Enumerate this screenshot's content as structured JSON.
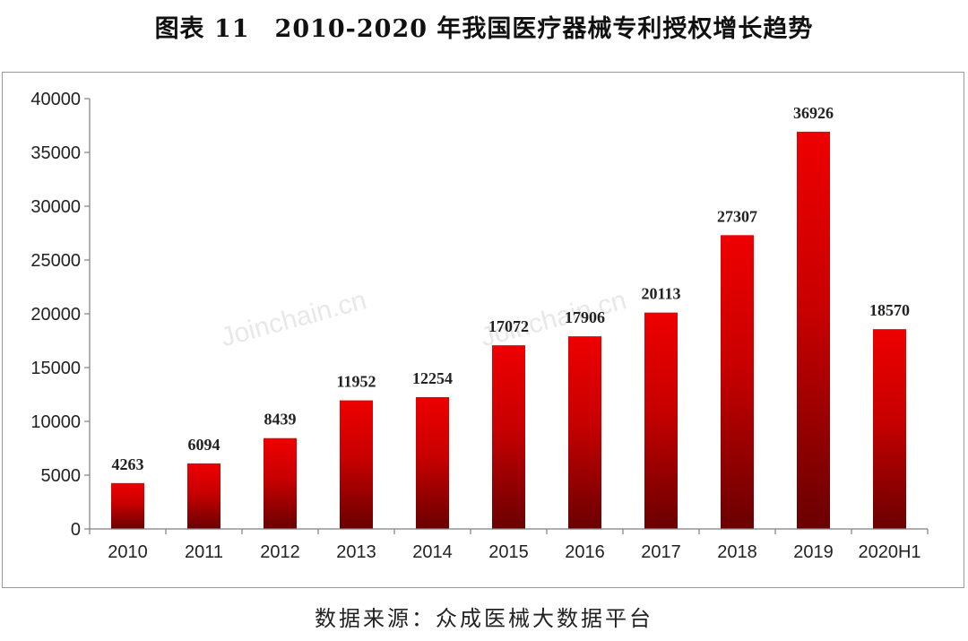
{
  "title": "图表 11　2010-2020 年我国医疗器械专利授权增长趋势",
  "source": "数据来源：众成医械大数据平台",
  "watermark": "Joinchain.cn",
  "colors": {
    "bar_top": "#ee0000",
    "bar_bottom": "#6a0000",
    "axis": "#7f7f7f"
  },
  "chart_data": {
    "type": "bar",
    "categories": [
      "2010",
      "2011",
      "2012",
      "2013",
      "2014",
      "2015",
      "2016",
      "2017",
      "2018",
      "2019",
      "2020H1"
    ],
    "values": [
      4263,
      6094,
      8439,
      11952,
      12254,
      17072,
      17906,
      20113,
      27307,
      36926,
      18570
    ],
    "ylim": [
      0,
      40000
    ],
    "yticks": [
      0,
      5000,
      10000,
      15000,
      20000,
      25000,
      30000,
      35000,
      40000
    ],
    "grid": false,
    "legend": "none"
  }
}
